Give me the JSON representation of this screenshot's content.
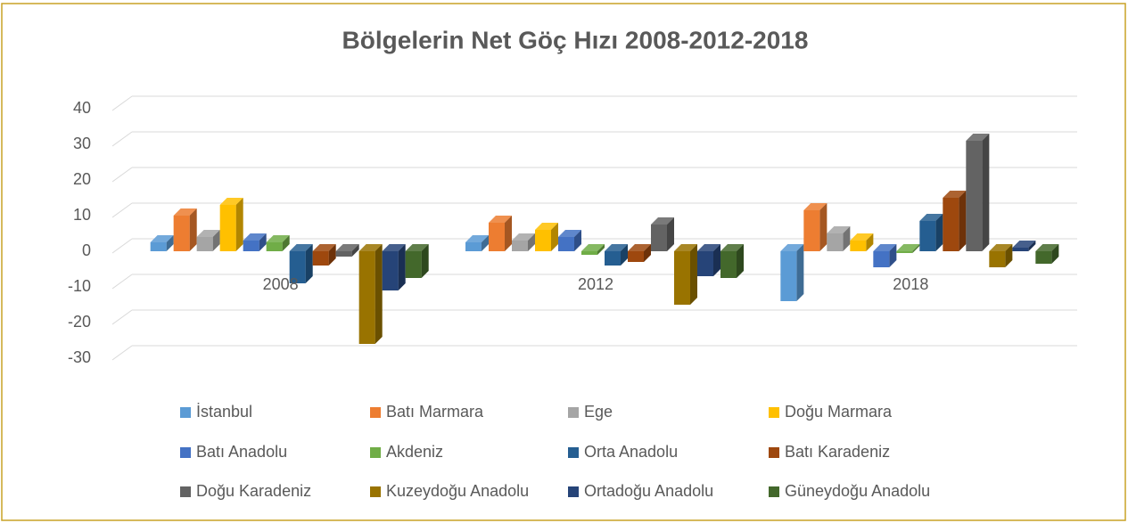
{
  "chart_data": {
    "type": "bar3d",
    "title": "Bölgelerin Net Göç Hızı 2008-2012-2018",
    "categories": [
      "2008",
      "2012",
      "2018"
    ],
    "ylim": [
      -30,
      40
    ],
    "yticks": [
      -30,
      -20,
      -10,
      0,
      10,
      20,
      30,
      40
    ],
    "grid": true,
    "legend": "bottom",
    "series": [
      {
        "name": "İstanbul",
        "color": "#5b9bd5",
        "values": [
          2.5,
          2.5,
          -14
        ]
      },
      {
        "name": "Batı Marmara",
        "color": "#ed7d31",
        "values": [
          10,
          8,
          11.5
        ]
      },
      {
        "name": "Ege",
        "color": "#a5a5a5",
        "values": [
          4,
          3,
          5
        ]
      },
      {
        "name": "Doğu Marmara",
        "color": "#ffc000",
        "values": [
          13,
          6,
          3
        ]
      },
      {
        "name": "Batı Anadolu",
        "color": "#4472c4",
        "values": [
          3,
          4,
          -4.5
        ]
      },
      {
        "name": "Akdeniz",
        "color": "#70ad47",
        "values": [
          2.5,
          -1,
          -0.5
        ]
      },
      {
        "name": "Orta Anadolu",
        "color": "#255e91",
        "values": [
          -9,
          -4,
          8.5
        ]
      },
      {
        "name": "Batı Karadeniz",
        "color": "#9e480e",
        "values": [
          -4,
          -3,
          15
        ]
      },
      {
        "name": "Doğu Karadeniz",
        "color": "#636363",
        "values": [
          -1.5,
          7.5,
          31
        ]
      },
      {
        "name": "Kuzeydoğu Anadolu",
        "color": "#997300",
        "values": [
          -26,
          -15,
          -4.5
        ]
      },
      {
        "name": "Ortadoğu Anadolu",
        "color": "#264478",
        "values": [
          -11,
          -7,
          1
        ]
      },
      {
        "name": "Güneydoğu Anadolu",
        "color": "#43682b",
        "values": [
          -7.5,
          -7.5,
          -3.5
        ]
      }
    ]
  }
}
